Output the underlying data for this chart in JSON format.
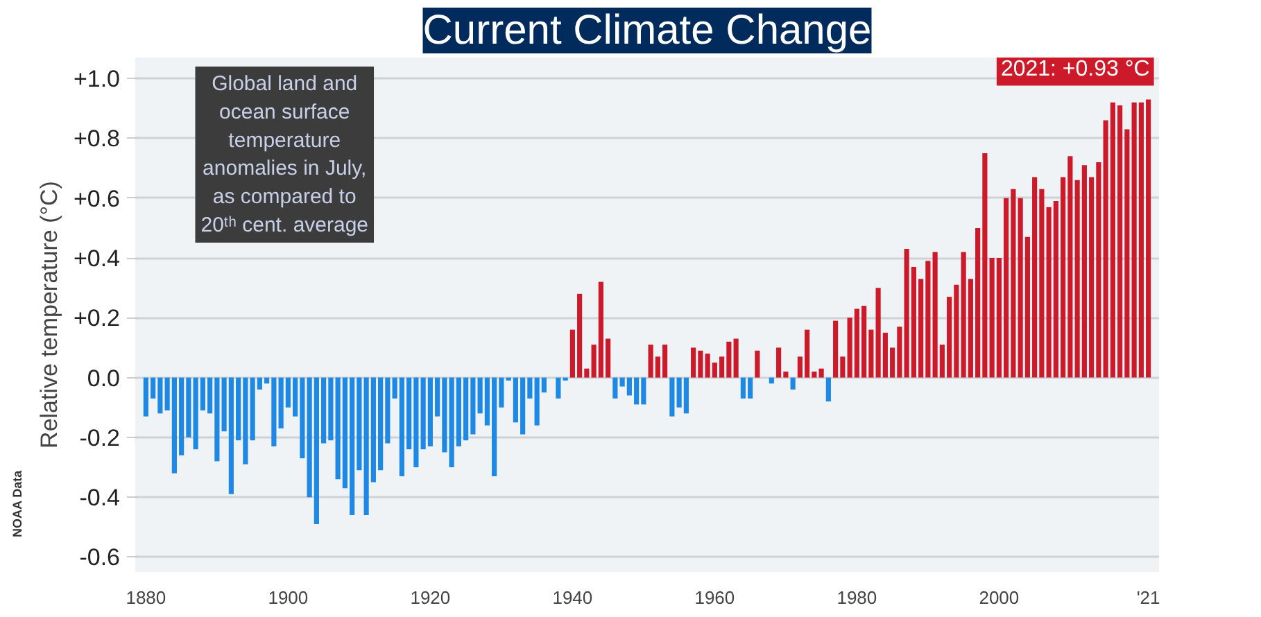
{
  "chart_data": {
    "type": "bar",
    "title": "Current Climate Change",
    "ylabel": "Relative temperature (°C)",
    "x": [
      1880,
      1881,
      1882,
      1883,
      1884,
      1885,
      1886,
      1887,
      1888,
      1889,
      1890,
      1891,
      1892,
      1893,
      1894,
      1895,
      1896,
      1897,
      1898,
      1899,
      1900,
      1901,
      1902,
      1903,
      1904,
      1905,
      1906,
      1907,
      1908,
      1909,
      1910,
      1911,
      1912,
      1913,
      1914,
      1915,
      1916,
      1917,
      1918,
      1919,
      1920,
      1921,
      1922,
      1923,
      1924,
      1925,
      1926,
      1927,
      1928,
      1929,
      1930,
      1931,
      1932,
      1933,
      1934,
      1935,
      1936,
      1937,
      1938,
      1939,
      1940,
      1941,
      1942,
      1943,
      1944,
      1945,
      1946,
      1947,
      1948,
      1949,
      1950,
      1951,
      1952,
      1953,
      1954,
      1955,
      1956,
      1957,
      1958,
      1959,
      1960,
      1961,
      1962,
      1963,
      1964,
      1965,
      1966,
      1967,
      1968,
      1969,
      1970,
      1971,
      1972,
      1973,
      1974,
      1975,
      1976,
      1977,
      1978,
      1979,
      1980,
      1981,
      1982,
      1983,
      1984,
      1985,
      1986,
      1987,
      1988,
      1989,
      1990,
      1991,
      1992,
      1993,
      1994,
      1995,
      1996,
      1997,
      1998,
      1999,
      2000,
      2001,
      2002,
      2003,
      2004,
      2005,
      2006,
      2007,
      2008,
      2009,
      2010,
      2011,
      2012,
      2013,
      2014,
      2015,
      2016,
      2017,
      2018,
      2019,
      2020,
      2021
    ],
    "values": [
      -0.13,
      -0.07,
      -0.12,
      -0.11,
      -0.32,
      -0.26,
      -0.2,
      -0.24,
      -0.11,
      -0.12,
      -0.28,
      -0.18,
      -0.39,
      -0.21,
      -0.29,
      -0.21,
      -0.04,
      -0.02,
      -0.23,
      -0.17,
      -0.1,
      -0.13,
      -0.27,
      -0.4,
      -0.49,
      -0.22,
      -0.21,
      -0.34,
      -0.37,
      -0.46,
      -0.31,
      -0.46,
      -0.35,
      -0.31,
      -0.22,
      -0.07,
      -0.33,
      -0.24,
      -0.3,
      -0.24,
      -0.23,
      -0.13,
      -0.25,
      -0.3,
      -0.23,
      -0.21,
      -0.19,
      -0.12,
      -0.16,
      -0.33,
      -0.1,
      -0.01,
      -0.15,
      -0.19,
      -0.07,
      -0.16,
      -0.05,
      0.0,
      -0.07,
      -0.01,
      0.16,
      0.28,
      0.03,
      0.11,
      0.32,
      0.13,
      -0.07,
      -0.03,
      -0.06,
      -0.09,
      -0.09,
      0.11,
      0.07,
      0.11,
      -0.13,
      -0.1,
      -0.12,
      0.1,
      0.09,
      0.08,
      0.05,
      0.07,
      0.12,
      0.13,
      -0.07,
      -0.07,
      0.09,
      0.0,
      -0.02,
      0.1,
      0.02,
      -0.04,
      0.07,
      0.16,
      0.02,
      0.03,
      -0.08,
      0.19,
      0.07,
      0.2,
      0.23,
      0.24,
      0.16,
      0.3,
      0.15,
      0.1,
      0.17,
      0.43,
      0.37,
      0.33,
      0.39,
      0.42,
      0.11,
      0.27,
      0.31,
      0.42,
      0.33,
      0.5,
      0.75,
      0.4,
      0.4,
      0.6,
      0.63,
      0.6,
      0.47,
      0.67,
      0.63,
      0.57,
      0.59,
      0.67,
      0.74,
      0.66,
      0.71,
      0.67,
      0.72,
      0.86,
      0.92,
      0.91,
      0.83,
      0.92,
      0.92,
      0.93
    ],
    "colors": [
      "#1e88e5",
      "#1e88e5",
      "#1e88e5",
      "#1e88e5",
      "#1e88e5",
      "#1e88e5",
      "#1e88e5",
      "#1e88e5",
      "#1e88e5",
      "#1e88e5",
      "#1e88e5",
      "#1e88e5",
      "#1e88e5",
      "#1e88e5",
      "#1e88e5",
      "#1e88e5",
      "#1e88e5",
      "#1e88e5",
      "#1e88e5",
      "#1e88e5",
      "#1e88e5",
      "#1e88e5",
      "#1e88e5",
      "#1e88e5",
      "#1e88e5",
      "#1e88e5",
      "#1e88e5",
      "#1e88e5",
      "#1e88e5",
      "#1e88e5",
      "#1e88e5",
      "#1e88e5",
      "#1e88e5",
      "#1e88e5",
      "#1e88e5",
      "#1e88e5",
      "#1e88e5",
      "#1e88e5",
      "#1e88e5",
      "#1e88e5",
      "#1e88e5",
      "#1e88e5",
      "#1e88e5",
      "#1e88e5",
      "#1e88e5",
      "#1e88e5",
      "#1e88e5",
      "#1e88e5",
      "#1e88e5",
      "#1e88e5",
      "#1e88e5",
      "#1e88e5",
      "#1e88e5",
      "#1e88e5",
      "#1e88e5",
      "#1e88e5",
      "#1e88e5",
      "#1e88e5",
      "#1e88e5",
      "#1e88e5",
      "#cc1a2a",
      "#cc1a2a",
      "#cc1a2a",
      "#cc1a2a",
      "#cc1a2a",
      "#cc1a2a",
      "#1e88e5",
      "#1e88e5",
      "#1e88e5",
      "#1e88e5",
      "#1e88e5",
      "#cc1a2a",
      "#cc1a2a",
      "#cc1a2a",
      "#1e88e5",
      "#1e88e5",
      "#1e88e5",
      "#cc1a2a",
      "#cc1a2a",
      "#cc1a2a",
      "#cc1a2a",
      "#cc1a2a",
      "#cc1a2a",
      "#cc1a2a",
      "#1e88e5",
      "#1e88e5",
      "#cc1a2a",
      "#cc1a2a",
      "#1e88e5",
      "#cc1a2a",
      "#cc1a2a",
      "#1e88e5",
      "#cc1a2a",
      "#cc1a2a",
      "#cc1a2a",
      "#cc1a2a",
      "#1e88e5",
      "#cc1a2a",
      "#cc1a2a",
      "#cc1a2a",
      "#cc1a2a",
      "#cc1a2a",
      "#cc1a2a",
      "#cc1a2a",
      "#cc1a2a",
      "#cc1a2a",
      "#cc1a2a",
      "#cc1a2a",
      "#cc1a2a",
      "#cc1a2a",
      "#cc1a2a",
      "#cc1a2a",
      "#cc1a2a",
      "#cc1a2a",
      "#cc1a2a",
      "#cc1a2a",
      "#cc1a2a",
      "#cc1a2a",
      "#cc1a2a",
      "#cc1a2a",
      "#cc1a2a",
      "#cc1a2a",
      "#cc1a2a",
      "#cc1a2a",
      "#cc1a2a",
      "#cc1a2a",
      "#cc1a2a",
      "#cc1a2a",
      "#cc1a2a",
      "#cc1a2a",
      "#cc1a2a",
      "#cc1a2a",
      "#cc1a2a",
      "#cc1a2a",
      "#cc1a2a",
      "#cc1a2a",
      "#cc1a2a",
      "#cc1a2a",
      "#cc1a2a",
      "#cc1a2a",
      "#cc1a2a",
      "#cc1a2a"
    ],
    "xlim": [
      1878.5,
      2022.5
    ],
    "xticks": [
      1880,
      1900,
      1920,
      1940,
      1960,
      1980,
      2000,
      {
        "value": 2021,
        "label": "'21"
      }
    ],
    "ylim": [
      -0.65,
      1.07
    ],
    "yticks": [
      {
        "value": -0.6,
        "label": "-0.6"
      },
      {
        "value": -0.4,
        "label": "-0.4"
      },
      {
        "value": -0.2,
        "label": "-0.2"
      },
      {
        "value": 0,
        "label": "0.0"
      },
      {
        "value": 0.2,
        "label": "+0.2"
      },
      {
        "value": 0.4,
        "label": "+0.4"
      },
      {
        "value": 0.6,
        "label": "+0.6"
      },
      {
        "value": 0.8,
        "label": "+0.8"
      },
      {
        "value": 1.0,
        "label": "+1.0"
      }
    ],
    "grid": "y",
    "annotations": [
      "Global land and\nocean surface\ntemperature\nanomalies in July,\nas compared to\n20ᵗʰ cent. average",
      "NOAA Data",
      {
        "text": "2021: +0.93 °C",
        "x": 2021,
        "y": 0.93
      }
    ]
  }
}
